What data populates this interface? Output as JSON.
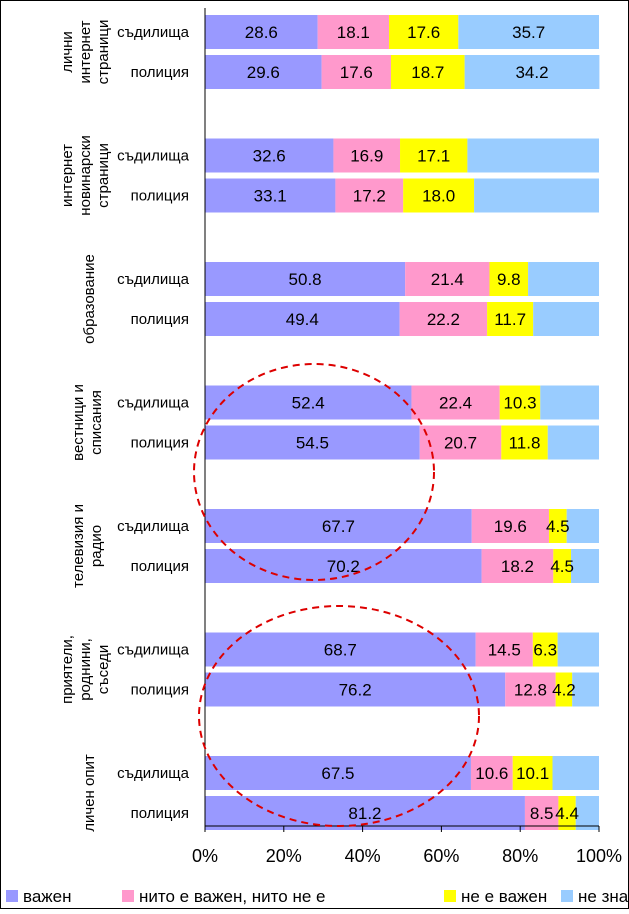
{
  "colors": {
    "important": "#9999ff",
    "neutral": "#ff99cc",
    "not_important": "#ffff00",
    "dont_know": "#99ccff",
    "ellipse": "#dd0000"
  },
  "chart_data": {
    "type": "bar",
    "orientation": "horizontal",
    "stacked": true,
    "xlim": [
      0,
      100
    ],
    "xticks": [
      "0%",
      "20%",
      "40%",
      "60%",
      "80%",
      "100%"
    ],
    "grid": false,
    "legend_position": "bottom",
    "groups": [
      {
        "label_lines": [
          "лични",
          "интернет",
          "страници"
        ],
        "rows": [
          {
            "label": "съдилища",
            "values": [
              28.6,
              18.1,
              17.6,
              35.7
            ],
            "labels": [
              "28.6",
              "18.1",
              "17.6",
              "35.7"
            ]
          },
          {
            "label": "полиция",
            "values": [
              29.6,
              17.6,
              18.7,
              34.2
            ],
            "labels": [
              "29.6",
              "17.6",
              "18.7",
              "34.2"
            ]
          }
        ]
      },
      {
        "label_lines": [
          "интернет",
          "новинарски",
          "страници"
        ],
        "rows": [
          {
            "label": "съдилища",
            "values": [
              32.6,
              16.9,
              17.1,
              33.4
            ],
            "labels": [
              "32.6",
              "16.9",
              "17.1",
              ""
            ]
          },
          {
            "label": "полиция",
            "values": [
              33.1,
              17.2,
              18.0,
              31.7
            ],
            "labels": [
              "33.1",
              "17.2",
              "18.0",
              ""
            ]
          }
        ]
      },
      {
        "label_lines": [
          "образование"
        ],
        "rows": [
          {
            "label": "съдилища",
            "values": [
              50.8,
              21.4,
              9.8,
              18.0
            ],
            "labels": [
              "50.8",
              "21.4",
              "9.8",
              ""
            ]
          },
          {
            "label": "полиция",
            "values": [
              49.4,
              22.2,
              11.7,
              16.7
            ],
            "labels": [
              "49.4",
              "22.2",
              "11.7",
              ""
            ]
          }
        ]
      },
      {
        "label_lines": [
          "вестници и",
          "списания"
        ],
        "rows": [
          {
            "label": "съдилища",
            "values": [
              52.4,
              22.4,
              10.3,
              14.9
            ],
            "labels": [
              "52.4",
              "22.4",
              "10.3",
              ""
            ]
          },
          {
            "label": "полиция",
            "values": [
              54.5,
              20.7,
              11.8,
              13.0
            ],
            "labels": [
              "54.5",
              "20.7",
              "11.8",
              ""
            ]
          }
        ]
      },
      {
        "label_lines": [
          "телевизия и",
          "радио"
        ],
        "rows": [
          {
            "label": "съдилища",
            "values": [
              67.7,
              19.6,
              4.5,
              8.2
            ],
            "labels": [
              "67.7",
              "19.6",
              "4.5",
              ""
            ]
          },
          {
            "label": "полиция",
            "values": [
              70.2,
              18.2,
              4.5,
              7.1
            ],
            "labels": [
              "70.2",
              "18.2",
              "4.5",
              ""
            ]
          }
        ]
      },
      {
        "label_lines": [
          "приятели,",
          "роднини,",
          "съседи"
        ],
        "rows": [
          {
            "label": "съдилища",
            "values": [
              68.7,
              14.5,
              6.3,
              10.5
            ],
            "labels": [
              "68.7",
              "14.5",
              "6.3",
              ""
            ]
          },
          {
            "label": "полиция",
            "values": [
              76.2,
              12.8,
              4.2,
              6.8
            ],
            "labels": [
              "76.2",
              "12.8",
              "4.2",
              ""
            ]
          }
        ]
      },
      {
        "label_lines": [
          "личен опит"
        ],
        "rows": [
          {
            "label": "съдилища",
            "values": [
              67.5,
              10.6,
              10.1,
              11.8
            ],
            "labels": [
              "67.5",
              "10.6",
              "10.1",
              ""
            ]
          },
          {
            "label": "полиция",
            "values": [
              81.2,
              8.5,
              4.4,
              5.9
            ],
            "labels": [
              "81.2",
              "8.5",
              "4.4",
              ""
            ]
          }
        ]
      }
    ],
    "legend": [
      {
        "name": "важен",
        "color_key": "important"
      },
      {
        "name": "нито е важен, нито не е",
        "color_key": "neutral"
      },
      {
        "name": "не е важен",
        "color_key": "not_important"
      },
      {
        "name": "не знам",
        "color_key": "dont_know"
      }
    ]
  }
}
